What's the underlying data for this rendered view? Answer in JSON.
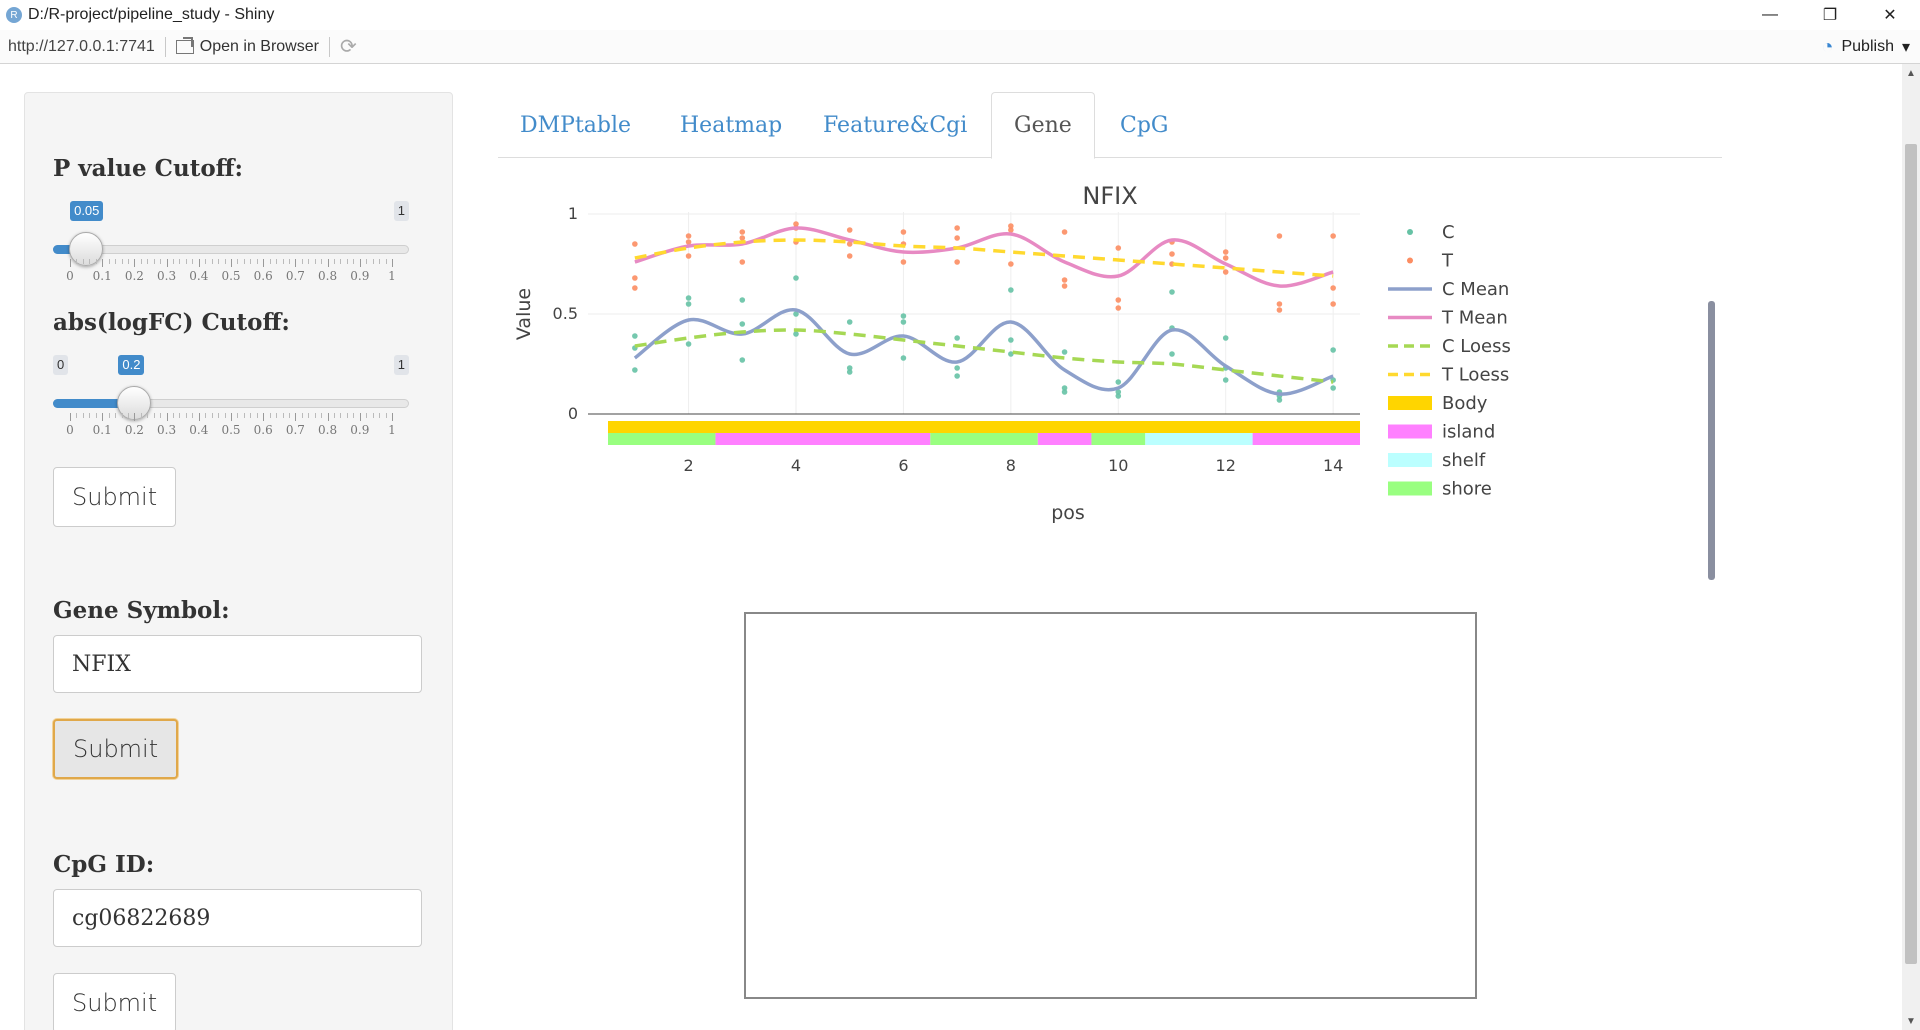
{
  "window": {
    "title": "D:/R-project/pipeline_study - Shiny",
    "app_icon": "R",
    "minimize_icon": "—",
    "restore_icon": "❐",
    "close_icon": "✕"
  },
  "address_bar": {
    "url": "http://127.0.0.1:7741",
    "open_in_browser": "Open in Browser",
    "refresh_icon": "⟳",
    "publish_label": "Publish",
    "publish_icon": "◔",
    "dropdown_icon": "▾"
  },
  "sidebar": {
    "pvalue": {
      "label": "P value Cutoff:",
      "min_label": "0",
      "max_label": "1",
      "value_label": "0.05",
      "value": 0.05,
      "min": 0,
      "max": 1,
      "tick_labels": [
        "0",
        "0.1",
        "0.2",
        "0.3",
        "0.4",
        "0.5",
        "0.6",
        "0.7",
        "0.8",
        "0.9",
        "1"
      ]
    },
    "logfc": {
      "label": "abs(logFC) Cutoff:",
      "min_label": "0",
      "max_label": "1",
      "value_label": "0.2",
      "value": 0.2,
      "min": 0,
      "max": 1,
      "tick_labels": [
        "0",
        "0.1",
        "0.2",
        "0.3",
        "0.4",
        "0.5",
        "0.6",
        "0.7",
        "0.8",
        "0.9",
        "1"
      ]
    },
    "submit1": "Submit",
    "gene_label": "Gene Symbol:",
    "gene_value": "NFIX",
    "submit2": "Submit",
    "cpg_label": "CpG ID:",
    "cpg_value": "cg06822689",
    "submit3": "Submit"
  },
  "tabs": [
    {
      "label": "DMPtable",
      "active": false
    },
    {
      "label": "Heatmap",
      "active": false
    },
    {
      "label": "Feature&Cgi",
      "active": false
    },
    {
      "label": "Gene",
      "active": true
    },
    {
      "label": "CpG",
      "active": false
    }
  ],
  "chart_data": {
    "type": "line",
    "title": "NFIX",
    "xlabel": "pos",
    "ylabel": "Value",
    "xlim": [
      0.5,
      14.5
    ],
    "ylim": [
      0,
      1
    ],
    "x_ticks": [
      2,
      4,
      6,
      8,
      10,
      12,
      14
    ],
    "y_ticks": [
      0,
      0.5,
      1
    ],
    "y_tick_labels": [
      "0",
      "0.5",
      "1"
    ],
    "grid": true,
    "legend_position": "right",
    "series": [
      {
        "name": "C Mean",
        "kind": "spline",
        "color": "#8da0cb",
        "x": [
          1,
          2,
          3,
          4,
          5,
          6,
          7,
          8,
          9,
          10,
          11,
          12,
          13,
          14
        ],
        "y": [
          0.28,
          0.47,
          0.4,
          0.52,
          0.3,
          0.39,
          0.26,
          0.46,
          0.22,
          0.13,
          0.42,
          0.24,
          0.1,
          0.19
        ]
      },
      {
        "name": "T Mean",
        "kind": "spline",
        "color": "#e78ac3",
        "x": [
          1,
          2,
          3,
          4,
          5,
          6,
          7,
          8,
          9,
          10,
          11,
          12,
          13,
          14
        ],
        "y": [
          0.76,
          0.84,
          0.85,
          0.93,
          0.87,
          0.81,
          0.83,
          0.9,
          0.76,
          0.69,
          0.87,
          0.75,
          0.64,
          0.71
        ]
      },
      {
        "name": "C Loess",
        "kind": "dash",
        "color": "#a6d854",
        "x": [
          1,
          2,
          3,
          4,
          5,
          6,
          7,
          8,
          9,
          10,
          11,
          12,
          13,
          14
        ],
        "y": [
          0.34,
          0.38,
          0.41,
          0.42,
          0.4,
          0.37,
          0.34,
          0.31,
          0.28,
          0.26,
          0.25,
          0.22,
          0.19,
          0.16
        ]
      },
      {
        "name": "T Loess",
        "kind": "dash",
        "color": "#ffd92f",
        "x": [
          1,
          2,
          3,
          4,
          5,
          6,
          7,
          8,
          9,
          10,
          11,
          12,
          13,
          14
        ],
        "y": [
          0.78,
          0.83,
          0.86,
          0.87,
          0.86,
          0.84,
          0.83,
          0.81,
          0.79,
          0.77,
          0.75,
          0.73,
          0.71,
          0.69
        ]
      }
    ],
    "points": [
      {
        "name": "C",
        "color": "#66c2a5",
        "x": [
          1,
          1,
          1,
          2,
          2,
          2,
          3,
          3,
          3,
          4,
          4,
          4,
          5,
          5,
          5,
          6,
          6,
          6,
          7,
          7,
          7,
          8,
          8,
          8,
          9,
          9,
          9,
          10,
          10,
          10,
          11,
          11,
          11,
          12,
          12,
          12,
          13,
          13,
          13,
          14,
          14,
          14
        ],
        "y": [
          0.22,
          0.33,
          0.39,
          0.35,
          0.55,
          0.58,
          0.27,
          0.45,
          0.57,
          0.4,
          0.5,
          0.68,
          0.21,
          0.23,
          0.46,
          0.28,
          0.46,
          0.49,
          0.19,
          0.23,
          0.38,
          0.3,
          0.37,
          0.62,
          0.11,
          0.13,
          0.31,
          0.09,
          0.11,
          0.16,
          0.3,
          0.43,
          0.61,
          0.17,
          0.23,
          0.38,
          0.07,
          0.09,
          0.11,
          0.13,
          0.17,
          0.32
        ]
      },
      {
        "name": "T",
        "color": "#fc8d62",
        "x": [
          1,
          1,
          1,
          2,
          2,
          2,
          3,
          3,
          3,
          4,
          4,
          4,
          5,
          5,
          5,
          6,
          6,
          6,
          7,
          7,
          7,
          8,
          8,
          8,
          9,
          9,
          9,
          10,
          10,
          10,
          11,
          11,
          11,
          12,
          12,
          12,
          13,
          13,
          13,
          14,
          14,
          14
        ],
        "y": [
          0.63,
          0.68,
          0.85,
          0.79,
          0.86,
          0.89,
          0.76,
          0.88,
          0.91,
          0.86,
          0.93,
          0.95,
          0.79,
          0.85,
          0.92,
          0.76,
          0.85,
          0.91,
          0.76,
          0.88,
          0.93,
          0.75,
          0.92,
          0.94,
          0.64,
          0.67,
          0.91,
          0.53,
          0.57,
          0.83,
          0.75,
          0.8,
          0.86,
          0.71,
          0.78,
          0.81,
          0.52,
          0.55,
          0.89,
          0.55,
          0.63,
          0.89
        ]
      }
    ],
    "annotation_tracks": [
      {
        "name": "Body",
        "color": "#ffd500",
        "segments": [
          [
            0.5,
            14.5
          ]
        ]
      },
      {
        "name": "island",
        "color": "#ff80ff",
        "segments": [
          [
            2.5,
            6.5
          ],
          [
            8.5,
            9.5
          ],
          [
            12.5,
            14.5
          ]
        ]
      },
      {
        "name": "shelf",
        "color": "#bbffff",
        "segments": [
          [
            10.5,
            12.5
          ]
        ]
      },
      {
        "name": "shore",
        "color": "#99ff80",
        "segments": [
          [
            0.5,
            2.5
          ],
          [
            6.5,
            8.5
          ],
          [
            9.5,
            10.5
          ]
        ]
      }
    ],
    "legend": [
      {
        "name": "C",
        "kind": "point",
        "color": "#66c2a5"
      },
      {
        "name": "T",
        "kind": "point",
        "color": "#fc8d62"
      },
      {
        "name": "C Mean",
        "kind": "line",
        "color": "#8da0cb"
      },
      {
        "name": "T Mean",
        "kind": "line",
        "color": "#e78ac3"
      },
      {
        "name": "C Loess",
        "kind": "dash",
        "color": "#a6d854"
      },
      {
        "name": "T Loess",
        "kind": "dash",
        "color": "#ffd92f"
      },
      {
        "name": "Body",
        "kind": "rect",
        "color": "#ffd500"
      },
      {
        "name": "island",
        "kind": "rect",
        "color": "#ff80ff"
      },
      {
        "name": "shelf",
        "kind": "rect",
        "color": "#bbffff"
      },
      {
        "name": "shore",
        "kind": "rect",
        "color": "#99ff80"
      }
    ]
  }
}
